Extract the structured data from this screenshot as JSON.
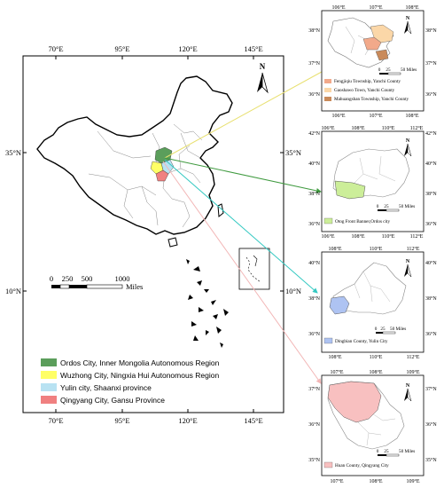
{
  "main_map": {
    "top_ticks": [
      "70°E",
      "95°E",
      "120°E",
      "145°E"
    ],
    "bottom_ticks": [
      "70°E",
      "95°E",
      "120°E",
      "145°E"
    ],
    "left_ticks": [
      "35°N",
      "10°N"
    ],
    "right_ticks": [
      "35°N",
      "10°N"
    ],
    "north_label": "N",
    "scale_labels": [
      "0",
      "250",
      "500",
      "1000"
    ],
    "scale_unit": "Miles",
    "legend": [
      {
        "label": "Ordos City, Inner Mongolia Autonomous Region",
        "color": "#5b9e5b"
      },
      {
        "label": "Wuzhong City, Ningxia Hui Autonomous Region",
        "color": "#ffff66"
      },
      {
        "label": "Yulin city, Shaanxi province",
        "color": "#b8e2f2"
      },
      {
        "label": "Qingyang City, Gansu Province",
        "color": "#f08080"
      }
    ]
  },
  "insets": [
    {
      "top_ticks": [
        "106°E",
        "107°E",
        "108°E"
      ],
      "bottom_ticks": [
        "106°E",
        "107°E",
        "108°E"
      ],
      "left_ticks": [
        "38°N",
        "37°N",
        "36°N"
      ],
      "right_ticks": [
        "38°N",
        "37°N",
        "36°N"
      ],
      "north_label": "N",
      "scale_labels": [
        "0",
        "25",
        "50 Miles"
      ],
      "legend": [
        {
          "label": "Fengjiqiu Township, Yanchi County",
          "color": "#f2a98a"
        },
        {
          "label": "Gaoshawo Town, Yanchi County",
          "color": "#fbd7a8"
        },
        {
          "label": "Mahuangshan Township, Yanchi County",
          "color": "#c98a5a"
        }
      ]
    },
    {
      "top_ticks": [
        "106°E",
        "108°E",
        "110°E",
        "112°E"
      ],
      "bottom_ticks": [
        "106°E",
        "108°E",
        "110°E",
        "112°E"
      ],
      "left_ticks": [
        "42°N",
        "40°N",
        "38°N",
        "36°N"
      ],
      "right_ticks": [
        "42°N",
        "40°N",
        "38°N",
        "36°N"
      ],
      "north_label": "N",
      "scale_labels": [
        "0",
        "25",
        "50 Miles"
      ],
      "legend": [
        {
          "label": "Otog Front Banner,Ordos city",
          "color": "#ccee99"
        }
      ]
    },
    {
      "top_ticks": [
        "108°E",
        "110°E",
        "112°E"
      ],
      "bottom_ticks": [
        "108°E",
        "110°E",
        "112°E"
      ],
      "left_ticks": [
        "40°N",
        "38°N",
        "36°N"
      ],
      "right_ticks": [
        "40°N",
        "38°N",
        "36°N"
      ],
      "north_label": "N",
      "scale_labels": [
        "0",
        "25",
        "50 Miles"
      ],
      "legend": [
        {
          "label": "Dingbian County, Yulin City",
          "color": "#aec3f2"
        }
      ]
    },
    {
      "top_ticks": [
        "107°E",
        "108°E",
        "109°E"
      ],
      "bottom_ticks": [
        "107°E",
        "108°E",
        "109°E"
      ],
      "left_ticks": [
        "37°N",
        "36°N",
        "35°N"
      ],
      "right_ticks": [
        "37°N",
        "36°N",
        "35°N"
      ],
      "north_label": "N",
      "scale_labels": [
        "0",
        "25",
        "50 Miles"
      ],
      "legend": [
        {
          "label": "Huan County, Qingyang City",
          "color": "#f8c0c0"
        }
      ]
    }
  ]
}
